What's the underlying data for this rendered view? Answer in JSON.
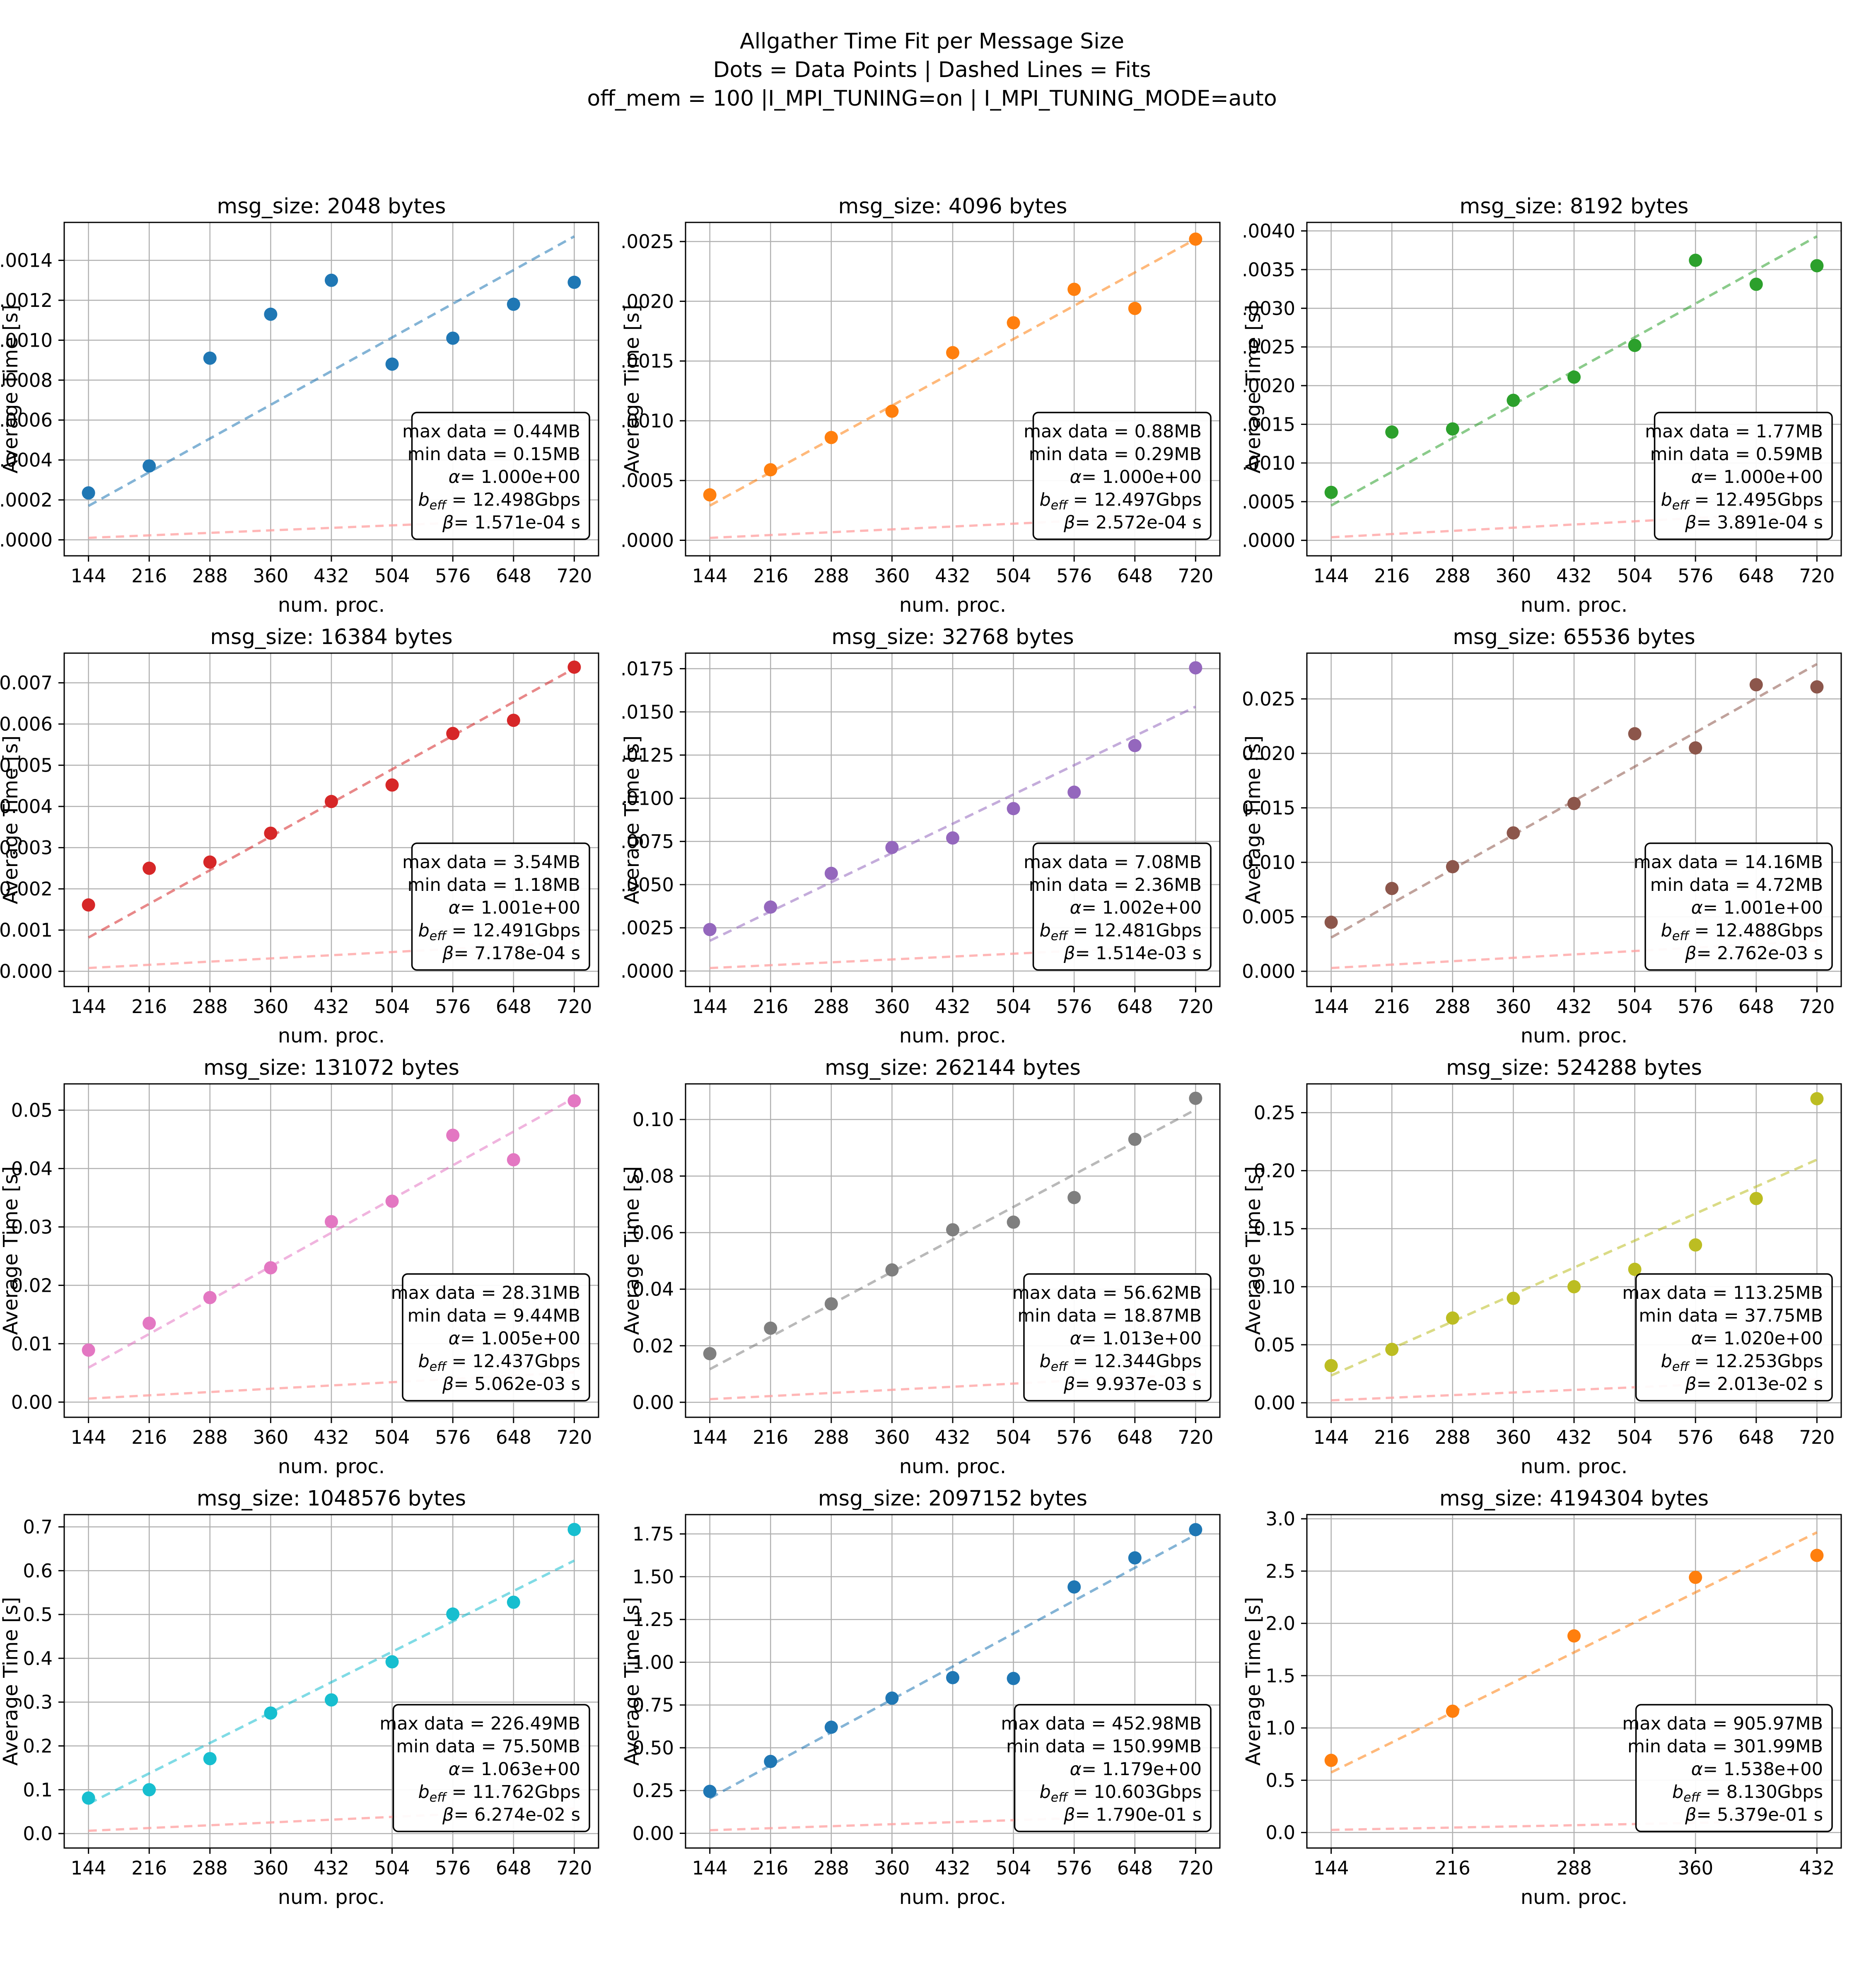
{
  "header": {
    "line1": "Allgather Time Fit per Message Size",
    "line2": "Dots = Data Points | Dashed Lines = Fits",
    "line3": "off_mem = 100 |I_MPI_TUNING=on | I_MPI_TUNING_MODE=auto"
  },
  "chart_data": {
    "type": "scatter",
    "xlabel": "num. proc.",
    "ylabel": "Average Time [s]",
    "grid": true,
    "grid_color": "#b0b0b0",
    "latency_line_color": "#ff9f9f",
    "fit_line_opacity": 0.55,
    "legend_note": "dots = data points, dashed colored line = linear fit, faint pink dashed line = latency term",
    "annotation_labels": {
      "max_prefix": "max data = ",
      "min_prefix": "min data = ",
      "alpha_sym": "α",
      "alpha_eq": "= ",
      "b_sym": "b",
      "b_sub": "eff",
      "b_eq": " = ",
      "beta_sym": "β",
      "beta_eq": "= ",
      "beta_suffix": " s"
    },
    "charts": [
      {
        "title": "msg_size: 2048 bytes",
        "msg_size_bytes": 2048,
        "color": "#1f77b4",
        "x": [
          144,
          216,
          288,
          360,
          432,
          504,
          576,
          648,
          720
        ],
        "values": [
          0.000235,
          0.00037,
          0.00091,
          0.00113,
          0.0013,
          0.00088,
          0.00101,
          0.00118,
          0.00129
        ],
        "fit": [
          0.00017,
          0.00152
        ],
        "latency": [
          1e-05,
          0.00011
        ],
        "y_ticks": [
          0,
          0.0002,
          0.0004,
          0.0006,
          0.0008,
          0.001,
          0.0012,
          0.0014
        ],
        "decimals": 4,
        "ylim": [
          -8e-05,
          0.00159
        ],
        "annotation": {
          "max_data": "0.44MB",
          "min_data": "0.15MB",
          "alpha": "1.000e+00",
          "b_eff": "12.498Gbps",
          "beta": "1.571e-04"
        }
      },
      {
        "title": "msg_size: 4096 bytes",
        "msg_size_bytes": 4096,
        "color": "#ff7f0e",
        "x": [
          144,
          216,
          288,
          360,
          432,
          504,
          576,
          648,
          720
        ],
        "values": [
          0.00038,
          0.00059,
          0.00086,
          0.00108,
          0.00157,
          0.00182,
          0.0021,
          0.00194,
          0.00252
        ],
        "fit": [
          0.00029,
          0.00252
        ],
        "latency": [
          2e-05,
          0.00021
        ],
        "y_ticks": [
          0,
          0.0005,
          0.001,
          0.0015,
          0.002,
          0.0025
        ],
        "decimals": 4,
        "ylim": [
          -0.00013,
          0.00266
        ],
        "annotation": {
          "max_data": "0.88MB",
          "min_data": "0.29MB",
          "alpha": "1.000e+00",
          "b_eff": "12.497Gbps",
          "beta": "2.572e-04"
        }
      },
      {
        "title": "msg_size: 8192 bytes",
        "msg_size_bytes": 8192,
        "color": "#2ca02c",
        "x": [
          144,
          216,
          288,
          360,
          432,
          504,
          576,
          648,
          720
        ],
        "values": [
          0.00062,
          0.0014,
          0.00144,
          0.00181,
          0.00211,
          0.00252,
          0.00362,
          0.00331,
          0.00355
        ],
        "fit": [
          0.00045,
          0.00393
        ],
        "latency": [
          4e-05,
          0.00037
        ],
        "y_ticks": [
          0,
          0.0005,
          0.001,
          0.0015,
          0.002,
          0.0025,
          0.003,
          0.0035,
          0.004
        ],
        "decimals": 4,
        "ylim": [
          -0.0002,
          0.00411
        ],
        "annotation": {
          "max_data": "1.77MB",
          "min_data": "0.59MB",
          "alpha": "1.000e+00",
          "b_eff": "12.495Gbps",
          "beta": "3.891e-04"
        }
      },
      {
        "title": "msg_size: 16384 bytes",
        "msg_size_bytes": 16384,
        "color": "#d62728",
        "x": [
          144,
          216,
          288,
          360,
          432,
          504,
          576,
          648,
          720
        ],
        "values": [
          0.00161,
          0.0025,
          0.00265,
          0.00335,
          0.00412,
          0.00452,
          0.00577,
          0.00609,
          0.00738
        ],
        "fit": [
          0.00082,
          0.00735
        ],
        "latency": [
          8e-05,
          0.0007
        ],
        "y_ticks": [
          0,
          0.001,
          0.002,
          0.003,
          0.004,
          0.005,
          0.006,
          0.007
        ],
        "decimals": 3,
        "ylim": [
          -0.00037,
          0.00772
        ],
        "annotation": {
          "max_data": "3.54MB",
          "min_data": "1.18MB",
          "alpha": "1.001e+00",
          "b_eff": "12.491Gbps",
          "beta": "7.178e-04"
        }
      },
      {
        "title": "msg_size: 32768 bytes",
        "msg_size_bytes": 32768,
        "color": "#9467bd",
        "x": [
          144,
          216,
          288,
          360,
          432,
          504,
          576,
          648,
          720
        ],
        "values": [
          0.0024,
          0.0037,
          0.00565,
          0.00715,
          0.0077,
          0.0094,
          0.01035,
          0.01305,
          0.01755
        ],
        "fit": [
          0.00175,
          0.0153
        ],
        "latency": [
          0.00017,
          0.0015
        ],
        "y_ticks": [
          0,
          0.0025,
          0.005,
          0.0075,
          0.01,
          0.0125,
          0.015,
          0.0175
        ],
        "decimals": 4,
        "ylim": [
          -0.0009,
          0.0184
        ],
        "annotation": {
          "max_data": "7.08MB",
          "min_data": "2.36MB",
          "alpha": "1.002e+00",
          "b_eff": "12.481Gbps",
          "beta": "1.514e-03"
        }
      },
      {
        "title": "msg_size: 65536 bytes",
        "msg_size_bytes": 65536,
        "color": "#8c564b",
        "x": [
          144,
          216,
          288,
          360,
          432,
          504,
          576,
          648,
          720
        ],
        "values": [
          0.0045,
          0.0076,
          0.0096,
          0.0127,
          0.0154,
          0.0218,
          0.0205,
          0.0263,
          0.0261
        ],
        "fit": [
          0.0031,
          0.0282
        ],
        "latency": [
          0.0003,
          0.0028
        ],
        "y_ticks": [
          0,
          0.005,
          0.01,
          0.015,
          0.02,
          0.025
        ],
        "decimals": 3,
        "ylim": [
          -0.0014,
          0.0292
        ],
        "annotation": {
          "max_data": "14.16MB",
          "min_data": "4.72MB",
          "alpha": "1.001e+00",
          "b_eff": "12.488Gbps",
          "beta": "2.762e-03"
        }
      },
      {
        "title": "msg_size: 131072 bytes",
        "msg_size_bytes": 131072,
        "color": "#e377c2",
        "x": [
          144,
          216,
          288,
          360,
          432,
          504,
          576,
          648,
          720
        ],
        "values": [
          0.0089,
          0.0135,
          0.0179,
          0.023,
          0.0309,
          0.0344,
          0.0457,
          0.0415,
          0.0516
        ],
        "fit": [
          0.0059,
          0.0521
        ],
        "latency": [
          0.0006,
          0.0051
        ],
        "y_ticks": [
          0,
          0.01,
          0.02,
          0.03,
          0.04,
          0.05
        ],
        "decimals": 2,
        "ylim": [
          -0.0026,
          0.0545
        ],
        "annotation": {
          "max_data": "28.31MB",
          "min_data": "9.44MB",
          "alpha": "1.005e+00",
          "b_eff": "12.437Gbps",
          "beta": "5.062e-03"
        }
      },
      {
        "title": "msg_size: 262144 bytes",
        "msg_size_bytes": 262144,
        "color": "#7f7f7f",
        "x": [
          144,
          216,
          288,
          360,
          432,
          504,
          576,
          648,
          720
        ],
        "values": [
          0.0172,
          0.0262,
          0.0348,
          0.0468,
          0.061,
          0.0637,
          0.0724,
          0.093,
          0.1075
        ],
        "fit": [
          0.0117,
          0.1035
        ],
        "latency": [
          0.0011,
          0.0099
        ],
        "y_ticks": [
          0,
          0.02,
          0.04,
          0.06,
          0.08,
          0.1
        ],
        "decimals": 2,
        "ylim": [
          -0.0053,
          0.1126
        ],
        "annotation": {
          "max_data": "56.62MB",
          "min_data": "18.87MB",
          "alpha": "1.013e+00",
          "b_eff": "12.344Gbps",
          "beta": "9.937e-03"
        }
      },
      {
        "title": "msg_size: 524288 bytes",
        "msg_size_bytes": 524288,
        "color": "#bcbd22",
        "x": [
          144,
          216,
          288,
          360,
          432,
          504,
          576,
          648,
          720
        ],
        "values": [
          0.032,
          0.046,
          0.073,
          0.09,
          0.1,
          0.115,
          0.136,
          0.176,
          0.262
        ],
        "fit": [
          0.0235,
          0.2095
        ],
        "latency": [
          0.0021,
          0.0201
        ],
        "y_ticks": [
          0,
          0.05,
          0.1,
          0.15,
          0.2,
          0.25
        ],
        "decimals": 2,
        "ylim": [
          -0.0125,
          0.2748
        ],
        "annotation": {
          "max_data": "113.25MB",
          "min_data": "37.75MB",
          "alpha": "1.020e+00",
          "b_eff": "12.253Gbps",
          "beta": "2.013e-02"
        }
      },
      {
        "title": "msg_size: 1048576 bytes",
        "msg_size_bytes": 1048576,
        "color": "#17becf",
        "x": [
          144,
          216,
          288,
          360,
          432,
          504,
          576,
          648,
          720
        ],
        "values": [
          0.081,
          0.1,
          0.171,
          0.275,
          0.305,
          0.392,
          0.501,
          0.528,
          0.694
        ],
        "fit": [
          0.068,
          0.623
        ],
        "latency": [
          0.0063,
          0.057
        ],
        "y_ticks": [
          0,
          0.1,
          0.2,
          0.3,
          0.4,
          0.5,
          0.6,
          0.7
        ],
        "decimals": 1,
        "ylim": [
          -0.033,
          0.728
        ],
        "annotation": {
          "max_data": "226.49MB",
          "min_data": "75.50MB",
          "alpha": "1.063e+00",
          "b_eff": "11.762Gbps",
          "beta": "6.274e-02"
        }
      },
      {
        "title": "msg_size: 2097152 bytes",
        "msg_size_bytes": 2097152,
        "color": "#1f77b4",
        "x": [
          144,
          216,
          288,
          360,
          432,
          504,
          576,
          648,
          720
        ],
        "values": [
          0.245,
          0.42,
          0.62,
          0.79,
          0.91,
          0.905,
          1.44,
          1.61,
          1.775
        ],
        "fit": [
          0.205,
          1.745
        ],
        "latency": [
          0.018,
          0.112
        ],
        "y_ticks": [
          0,
          0.25,
          0.5,
          0.75,
          1.0,
          1.25,
          1.5,
          1.75
        ],
        "decimals": 2,
        "ylim": [
          -0.086,
          1.863
        ],
        "annotation": {
          "max_data": "452.98MB",
          "min_data": "150.99MB",
          "alpha": "1.179e+00",
          "b_eff": "10.603Gbps",
          "beta": "1.790e-01"
        }
      },
      {
        "title": "msg_size: 4194304 bytes",
        "msg_size_bytes": 4194304,
        "color": "#ff7f0e",
        "x": [
          144,
          216,
          288,
          360,
          432
        ],
        "values": [
          0.69,
          1.16,
          1.88,
          2.44,
          2.65
        ],
        "fit": [
          0.575,
          2.87
        ],
        "latency": [
          0.025,
          0.115
        ],
        "y_ticks": [
          0,
          0.5,
          1.0,
          1.5,
          2.0,
          2.5,
          3.0
        ],
        "decimals": 1,
        "ylim": [
          -0.148,
          3.04
        ],
        "annotation": {
          "max_data": "905.97MB",
          "min_data": "301.99MB",
          "alpha": "1.538e+00",
          "b_eff": "8.130Gbps",
          "beta": "5.379e-01"
        }
      }
    ]
  }
}
